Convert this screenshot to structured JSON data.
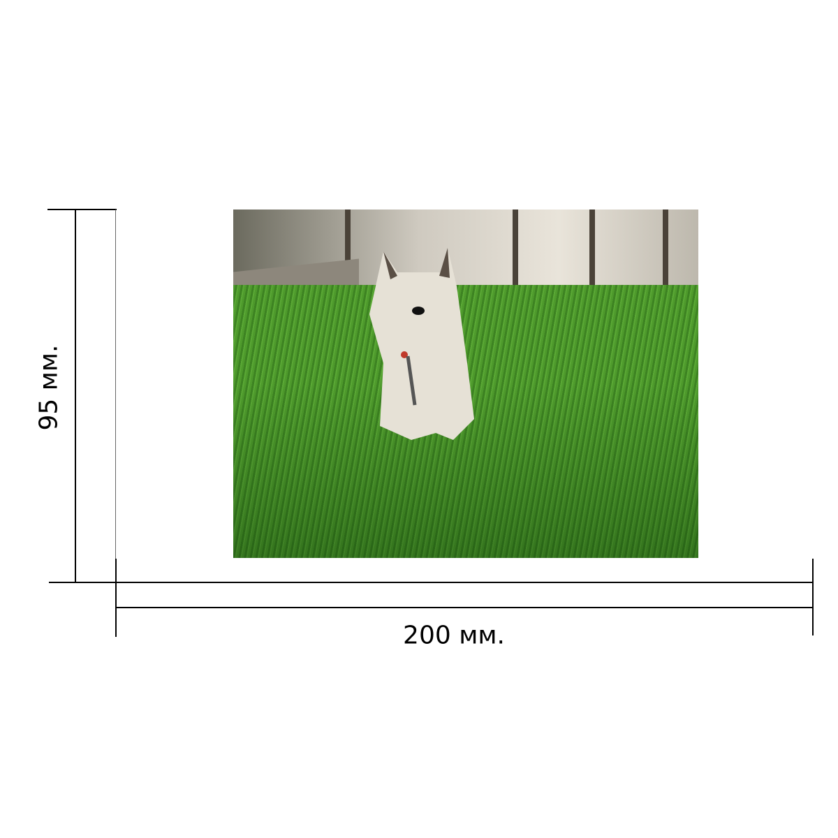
{
  "dimensions": {
    "width_label": "200 мм.",
    "height_label": "95 мм."
  },
  "photo": {
    "subject": "dog-on-grass-photo"
  },
  "colors": {
    "line": "#000000",
    "grass": "#4e9a2c"
  }
}
